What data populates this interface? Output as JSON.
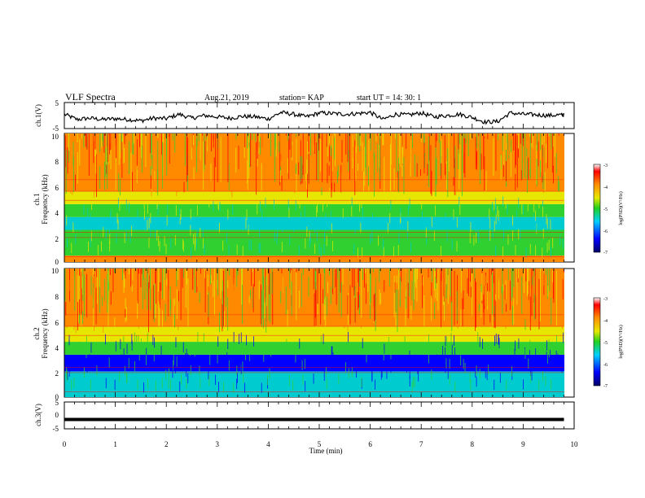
{
  "header": {
    "title": "VLF Spectra",
    "date": "Aug.21, 2019",
    "station": "station= KAP",
    "start": "start  UT  =   14: 30: 1"
  },
  "colors": {
    "red": "#ff0000",
    "orange": "#ff8a00",
    "yellow": "#e6e600",
    "green": "#30d030",
    "cyan": "#00ccd0",
    "blue": "#0000ff",
    "background": "#ffffff",
    "frame": "#000000"
  },
  "chart_data": [
    {
      "type": "line",
      "panel": "channel-1 voltage",
      "ylabel": "ch.1(V)",
      "ylim": [
        -5,
        5
      ],
      "yticks": [
        "5",
        "-5"
      ],
      "xlim": [
        0,
        10
      ],
      "series": [
        {
          "x": [
            0,
            0.25,
            0.5,
            0.75,
            1,
            1.25,
            1.5,
            1.75,
            2,
            2.25,
            2.5,
            2.75,
            3,
            3.25,
            3.5,
            3.75,
            4,
            4.25,
            4.5,
            4.75,
            5,
            5.25,
            5.5,
            5.75,
            6,
            6.25,
            6.5,
            6.75,
            7,
            7.25,
            7.5,
            7.75,
            8,
            8.25,
            8.5,
            8.75,
            9,
            9.25,
            9.5,
            9.75,
            9.8
          ],
          "y": [
            0.5,
            -1.5,
            -1.0,
            -1.5,
            -1.2,
            -1.5,
            -2.0,
            -1.0,
            -1.2,
            0.5,
            -1.0,
            0.0,
            -0.5,
            -1.0,
            -0.3,
            -0.5,
            -1.3,
            1.2,
            0.5,
            -0.5,
            1.0,
            0.8,
            0.5,
            0.8,
            1.2,
            -1.5,
            0.5,
            0.2,
            1.0,
            -0.5,
            0.0,
            0.5,
            -0.7,
            -2.5,
            -2.3,
            1.0,
            0.5,
            0.3,
            0.0,
            0.3,
            0.2
          ]
        }
      ]
    },
    {
      "type": "heatmap",
      "panel": "channel-1 spectrogram",
      "ylabel": "Frequency  (kHz)",
      "channel_label": "ch.1",
      "xlim": [
        0,
        10
      ],
      "ylim": [
        0,
        10
      ],
      "yticks": [
        "0",
        "2",
        "4",
        "6",
        "8",
        "10"
      ],
      "bands": [
        {
          "from": 0.0,
          "to": 0.5,
          "color": "orange"
        },
        {
          "from": 0.5,
          "to": 2.5,
          "color": "green"
        },
        {
          "from": 2.5,
          "to": 3.5,
          "color": "cyan"
        },
        {
          "from": 3.5,
          "to": 4.5,
          "color": "green"
        },
        {
          "from": 4.5,
          "to": 5.5,
          "color": "yellow"
        },
        {
          "from": 5.5,
          "to": 10.0,
          "color": "orange"
        }
      ],
      "colorbar": {
        "label": "log(PSD)(V²/Hz)",
        "ticks": [
          "-3",
          "-4",
          "-5",
          "-6",
          "-7"
        ],
        "range": [
          -7,
          -3
        ]
      }
    },
    {
      "type": "heatmap",
      "panel": "channel-2 spectrogram",
      "ylabel": "Frequency  (kHz)",
      "channel_label": "ch.2",
      "xlim": [
        0,
        10
      ],
      "ylim": [
        0,
        10
      ],
      "yticks": [
        "0",
        "2",
        "4",
        "6",
        "8",
        "10"
      ],
      "bands": [
        {
          "from": 0.0,
          "to": 2.0,
          "color": "cyan"
        },
        {
          "from": 2.0,
          "to": 3.3,
          "color": "blue"
        },
        {
          "from": 3.3,
          "to": 4.3,
          "color": "green"
        },
        {
          "from": 4.3,
          "to": 5.5,
          "color": "yellow"
        },
        {
          "from": 5.5,
          "to": 10.0,
          "color": "orange"
        }
      ],
      "colorbar": {
        "label": "log(PSD)(V²/Hz)",
        "ticks": [
          "-3",
          "-4",
          "-5",
          "-6",
          "-7"
        ],
        "range": [
          -7,
          -3
        ]
      }
    },
    {
      "type": "line",
      "panel": "channel-3 voltage",
      "ylabel": "ch.3(V)",
      "ylim": [
        -5,
        5
      ],
      "yticks": [
        "5",
        "0",
        "-5"
      ],
      "xlim": [
        0,
        10
      ],
      "xlabel": "Time  (min)",
      "xticks": [
        "0",
        "1",
        "2",
        "3",
        "4",
        "5",
        "6",
        "7",
        "8",
        "9",
        "10"
      ],
      "series": [
        {
          "x": [
            0,
            9.8
          ],
          "y": [
            -1.5,
            -1.5
          ]
        }
      ]
    }
  ]
}
